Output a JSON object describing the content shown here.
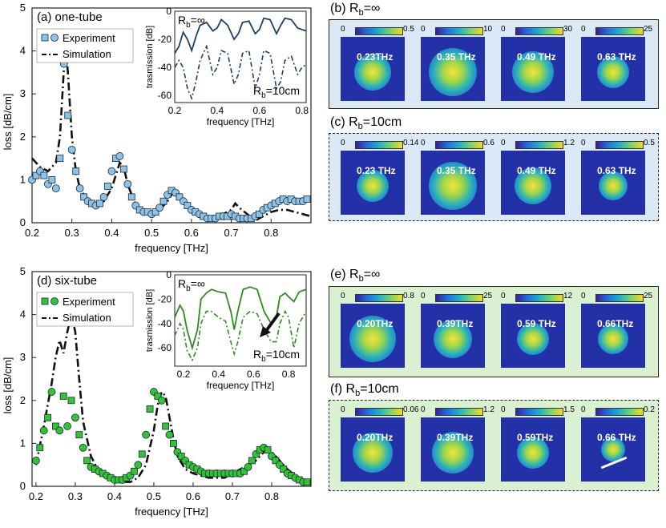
{
  "colors": {
    "blue_marker": "#8ec3e8",
    "blue_line": "#1a3f6a",
    "green_marker": "#33c433",
    "green_line": "#2e8b1f",
    "panel_blue": "#dbe9f6",
    "panel_green": "#d9f0d1"
  },
  "chart_data": [
    {
      "type": "line",
      "title": "(a) one-tube",
      "xlabel": "frequency [THz]",
      "ylabel": "loss [dB/cm]",
      "xlim": [
        0.2,
        0.9
      ],
      "ylim": [
        0,
        5
      ],
      "x_ticks": [
        "0.2",
        "0.3",
        "0.4",
        "0.5",
        "0.6",
        "0.7",
        "0.8"
      ],
      "y_ticks": [
        "0",
        "1",
        "2",
        "3",
        "4",
        "5"
      ],
      "legend": [
        "Experiment",
        "Simulation"
      ],
      "series": [
        {
          "name": "Experiment",
          "x": [
            0.2,
            0.21,
            0.22,
            0.23,
            0.24,
            0.25,
            0.26,
            0.27,
            0.28,
            0.29,
            0.3,
            0.31,
            0.32,
            0.33,
            0.34,
            0.35,
            0.36,
            0.37,
            0.38,
            0.39,
            0.4,
            0.41,
            0.42,
            0.43,
            0.44,
            0.45,
            0.46,
            0.47,
            0.48,
            0.49,
            0.5,
            0.51,
            0.52,
            0.53,
            0.54,
            0.55,
            0.56,
            0.57,
            0.58,
            0.59,
            0.6,
            0.61,
            0.62,
            0.63,
            0.64,
            0.65,
            0.66,
            0.67,
            0.68,
            0.69,
            0.7,
            0.71,
            0.72,
            0.73,
            0.74,
            0.75,
            0.76,
            0.77,
            0.78,
            0.79,
            0.8,
            0.81,
            0.82,
            0.83,
            0.84,
            0.85,
            0.86,
            0.87,
            0.88,
            0.89
          ],
          "y": [
            1.0,
            1.1,
            1.2,
            1.1,
            0.9,
            1.0,
            0.8,
            1.5,
            3.7,
            2.5,
            1.7,
            1.2,
            0.8,
            0.6,
            0.5,
            0.45,
            0.4,
            0.45,
            0.6,
            0.85,
            1.2,
            1.5,
            1.55,
            1.25,
            0.9,
            0.6,
            0.4,
            0.3,
            0.25,
            0.25,
            0.2,
            0.25,
            0.35,
            0.5,
            0.65,
            0.75,
            0.7,
            0.6,
            0.5,
            0.4,
            0.3,
            0.25,
            0.2,
            0.15,
            0.1,
            0.1,
            0.1,
            0.15,
            0.15,
            0.15,
            0.2,
            0.15,
            0.1,
            0.1,
            0.1,
            0.1,
            0.15,
            0.2,
            0.3,
            0.35,
            0.4,
            0.45,
            0.5,
            0.55,
            0.5,
            0.55,
            0.5,
            0.5,
            0.5,
            0.55
          ]
        },
        {
          "name": "Simulation",
          "x": [
            0.2,
            0.22,
            0.24,
            0.26,
            0.27,
            0.28,
            0.285,
            0.29,
            0.3,
            0.31,
            0.32,
            0.34,
            0.36,
            0.38,
            0.4,
            0.41,
            0.42,
            0.43,
            0.44,
            0.46,
            0.48,
            0.5,
            0.52,
            0.54,
            0.55,
            0.56,
            0.57,
            0.58,
            0.6,
            0.62,
            0.64,
            0.66,
            0.68,
            0.7,
            0.71,
            0.72,
            0.74,
            0.76,
            0.78,
            0.8,
            0.82,
            0.84,
            0.86,
            0.88,
            0.9
          ],
          "y": [
            1.5,
            1.3,
            1.2,
            1.4,
            2.0,
            3.6,
            4.0,
            3.5,
            2.0,
            1.2,
            0.8,
            0.5,
            0.4,
            0.5,
            0.8,
            1.1,
            1.4,
            1.3,
            0.9,
            0.4,
            0.25,
            0.2,
            0.3,
            0.5,
            0.65,
            0.75,
            0.7,
            0.5,
            0.3,
            0.2,
            0.15,
            0.15,
            0.2,
            0.3,
            0.45,
            0.35,
            0.2,
            0.05,
            0.15,
            0.25,
            0.3,
            0.3,
            0.25,
            0.2,
            0.15
          ]
        }
      ],
      "inset": {
        "xlabel": "frequency [THz]",
        "ylabel": "trasmission [dB]",
        "xlim": [
          0.2,
          0.82
        ],
        "ylim": [
          -65,
          0
        ],
        "x_ticks": [
          "0.2",
          "0.4",
          "0.6",
          "0.8"
        ],
        "y_ticks": [
          "0",
          "-20",
          "-40",
          "-60"
        ],
        "annotation_top_prefix": "R",
        "annotation_top_sub": "b",
        "annotation_top_value": "=∞",
        "annotation_bottom_prefix": "R",
        "annotation_bottom_sub": "b",
        "annotation_bottom_value": "=10cm",
        "series": [
          {
            "x": [
              0.2,
              0.22,
              0.24,
              0.26,
              0.28,
              0.3,
              0.32,
              0.35,
              0.38,
              0.4,
              0.42,
              0.45,
              0.48,
              0.5,
              0.52,
              0.55,
              0.58,
              0.6,
              0.62,
              0.65,
              0.68,
              0.7,
              0.72,
              0.75,
              0.78,
              0.8,
              0.82
            ],
            "y": [
              -30,
              -25,
              -15,
              -20,
              -28,
              -18,
              -10,
              -8,
              -14,
              -12,
              -6,
              -10,
              -20,
              -16,
              -8,
              -7,
              -16,
              -13,
              -5,
              -6,
              -16,
              -10,
              -5,
              -6,
              -12,
              -13,
              -14
            ]
          },
          {
            "x": [
              0.2,
              0.22,
              0.24,
              0.26,
              0.28,
              0.3,
              0.32,
              0.35,
              0.38,
              0.4,
              0.42,
              0.45,
              0.48,
              0.5,
              0.52,
              0.55,
              0.58,
              0.6,
              0.62,
              0.65,
              0.68,
              0.7,
              0.72,
              0.75,
              0.78,
              0.8,
              0.82
            ],
            "y": [
              -40,
              -35,
              -40,
              -55,
              -62,
              -50,
              -35,
              -25,
              -45,
              -40,
              -28,
              -30,
              -52,
              -45,
              -30,
              -28,
              -55,
              -45,
              -28,
              -30,
              -55,
              -50,
              -35,
              -32,
              -45,
              -40,
              -38
            ]
          }
        ]
      }
    },
    {
      "type": "line",
      "title": "(d) six-tube",
      "xlabel": "frequency [THz]",
      "ylabel": "loss [dB/cm]",
      "xlim": [
        0.19,
        0.9
      ],
      "ylim": [
        0,
        5
      ],
      "x_ticks": [
        "0.2",
        "0.3",
        "0.4",
        "0.5",
        "0.6",
        "0.7",
        "0.8"
      ],
      "y_ticks": [
        "0",
        "1",
        "2",
        "3",
        "4",
        "5"
      ],
      "legend": [
        "Experiment",
        "Simulation"
      ],
      "series": [
        {
          "name": "Experiment",
          "x": [
            0.2,
            0.21,
            0.22,
            0.23,
            0.24,
            0.25,
            0.26,
            0.27,
            0.28,
            0.29,
            0.3,
            0.31,
            0.32,
            0.33,
            0.34,
            0.35,
            0.36,
            0.37,
            0.38,
            0.39,
            0.4,
            0.41,
            0.42,
            0.43,
            0.44,
            0.45,
            0.46,
            0.47,
            0.48,
            0.49,
            0.5,
            0.51,
            0.52,
            0.53,
            0.54,
            0.55,
            0.56,
            0.57,
            0.58,
            0.59,
            0.6,
            0.61,
            0.62,
            0.63,
            0.64,
            0.65,
            0.66,
            0.67,
            0.68,
            0.69,
            0.7,
            0.71,
            0.72,
            0.73,
            0.74,
            0.75,
            0.76,
            0.77,
            0.78,
            0.79,
            0.8,
            0.81,
            0.82,
            0.83,
            0.84,
            0.85,
            0.86,
            0.87,
            0.88,
            0.89
          ],
          "y": [
            0.6,
            0.9,
            1.3,
            1.6,
            2.2,
            1.4,
            1.3,
            2.1,
            1.4,
            2.0,
            1.6,
            1.2,
            0.9,
            0.6,
            0.45,
            0.4,
            0.35,
            0.3,
            0.25,
            0.2,
            0.15,
            0.15,
            0.15,
            0.2,
            0.25,
            0.35,
            0.5,
            0.75,
            1.2,
            1.8,
            2.2,
            2.1,
            2.0,
            1.4,
            1.2,
            1.0,
            0.8,
            0.7,
            0.6,
            0.5,
            0.45,
            0.4,
            0.35,
            0.3,
            0.3,
            0.3,
            0.3,
            0.3,
            0.3,
            0.3,
            0.3,
            0.3,
            0.3,
            0.35,
            0.45,
            0.6,
            0.75,
            0.85,
            0.9,
            0.85,
            0.7,
            0.6,
            0.5,
            0.4,
            0.3,
            0.25,
            0.2,
            0.15,
            0.1,
            0.1
          ]
        },
        {
          "name": "Simulation",
          "x": [
            0.2,
            0.22,
            0.24,
            0.25,
            0.26,
            0.27,
            0.28,
            0.29,
            0.3,
            0.31,
            0.32,
            0.34,
            0.36,
            0.38,
            0.4,
            0.42,
            0.44,
            0.46,
            0.48,
            0.5,
            0.51,
            0.52,
            0.53,
            0.54,
            0.55,
            0.56,
            0.58,
            0.6,
            0.62,
            0.64,
            0.66,
            0.68,
            0.7,
            0.72,
            0.74,
            0.76,
            0.78,
            0.8,
            0.82,
            0.84,
            0.86,
            0.88,
            0.9
          ],
          "y": [
            0.5,
            1.4,
            2.4,
            3.0,
            3.4,
            3.1,
            3.6,
            4.0,
            3.6,
            2.5,
            1.5,
            0.7,
            0.35,
            0.2,
            0.12,
            0.1,
            0.1,
            0.2,
            0.5,
            1.3,
            1.9,
            2.2,
            2.1,
            1.6,
            1.1,
            0.7,
            0.4,
            0.3,
            0.25,
            0.2,
            0.2,
            0.2,
            0.3,
            0.4,
            0.5,
            0.6,
            0.8,
            0.8,
            0.6,
            0.4,
            0.25,
            0.15,
            0.1
          ]
        }
      ],
      "inset": {
        "xlabel": "frequency [THz]",
        "ylabel": "trasmission [dB]",
        "xlim": [
          0.15,
          0.9
        ],
        "ylim": [
          -75,
          0
        ],
        "x_ticks": [
          "0.2",
          "0.4",
          "0.6",
          "0.8"
        ],
        "y_ticks": [
          "0",
          "-20",
          "-40",
          "-60"
        ],
        "annotation_top_prefix": "R",
        "annotation_top_sub": "b",
        "annotation_top_value": "=∞",
        "annotation_bottom_prefix": "R",
        "annotation_bottom_sub": "b",
        "annotation_bottom_value": "=10cm",
        "series": [
          {
            "x": [
              0.15,
              0.18,
              0.2,
              0.22,
              0.25,
              0.28,
              0.3,
              0.33,
              0.36,
              0.4,
              0.44,
              0.47,
              0.49,
              0.51,
              0.54,
              0.58,
              0.62,
              0.66,
              0.7,
              0.73,
              0.75,
              0.78,
              0.8,
              0.83,
              0.86,
              0.9
            ],
            "y": [
              -35,
              -25,
              -30,
              -45,
              -60,
              -45,
              -20,
              -15,
              -12,
              -14,
              -15,
              -30,
              -45,
              -30,
              -12,
              -10,
              -12,
              -30,
              -40,
              -35,
              -18,
              -15,
              -18,
              -22,
              -14,
              -12
            ]
          },
          {
            "x": [
              0.15,
              0.18,
              0.2,
              0.22,
              0.25,
              0.28,
              0.3,
              0.33,
              0.36,
              0.4,
              0.44,
              0.47,
              0.49,
              0.51,
              0.54,
              0.58,
              0.62,
              0.66,
              0.7,
              0.73,
              0.75,
              0.78,
              0.8,
              0.83,
              0.86,
              0.9
            ],
            "y": [
              -50,
              -40,
              -45,
              -62,
              -70,
              -60,
              -40,
              -30,
              -30,
              -35,
              -38,
              -55,
              -65,
              -55,
              -35,
              -30,
              -32,
              -45,
              -55,
              -55,
              -40,
              -30,
              -35,
              -60,
              -40,
              -30
            ]
          }
        ]
      }
    }
  ],
  "panels": {
    "b": {
      "label_prefix": "(b) R",
      "label_sub": "b",
      "label_value": "=∞",
      "cells": [
        {
          "min": "0",
          "max": "0.5",
          "freq": "0.23THz"
        },
        {
          "min": "0",
          "max": "10",
          "freq": "0.35 THz"
        },
        {
          "min": "0",
          "max": "30",
          "freq": "0.49 THz"
        },
        {
          "min": "0",
          "max": "25",
          "freq": "0.63 THz"
        }
      ]
    },
    "c": {
      "label_prefix": "(c) R",
      "label_sub": "b",
      "label_value": "=10cm",
      "cells": [
        {
          "min": "0",
          "max": "0.14",
          "freq": "0.23 THz"
        },
        {
          "min": "0",
          "max": "0.6",
          "freq": "0.35 THz"
        },
        {
          "min": "0",
          "max": "1.2",
          "freq": "0.49 THz"
        },
        {
          "min": "0",
          "max": "0.5",
          "freq": "0.63 THz"
        }
      ]
    },
    "e": {
      "label_prefix": "(e) R",
      "label_sub": "b",
      "label_value": "=∞",
      "cells": [
        {
          "min": "0",
          "max": "0.8",
          "freq": "0.20THz"
        },
        {
          "min": "0",
          "max": "25",
          "freq": "0.39THz"
        },
        {
          "min": "0",
          "max": "12",
          "freq": "0.59 THz"
        },
        {
          "min": "0",
          "max": "25",
          "freq": "0.66THz"
        }
      ]
    },
    "f": {
      "label_prefix": "(f) R",
      "label_sub": "b",
      "label_value": "=10cm",
      "cells": [
        {
          "min": "0",
          "max": "0.06",
          "freq": "0.20THz"
        },
        {
          "min": "0",
          "max": "1.2",
          "freq": "0.39THz"
        },
        {
          "min": "0",
          "max": "1.5",
          "freq": "0.59THz"
        },
        {
          "min": "0",
          "max": "0.2",
          "freq": "0.66 THz"
        }
      ]
    }
  }
}
